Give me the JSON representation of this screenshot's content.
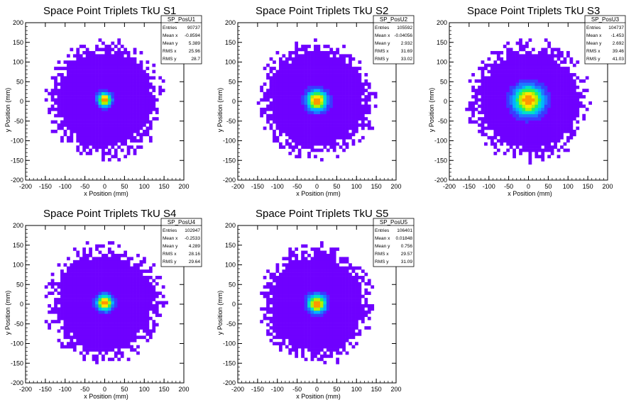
{
  "chart_data": [
    {
      "type": "heatmap",
      "title": "Space Point Triplets TkU S1",
      "xlabel": "x Position (mm)",
      "ylabel": "y Position (mm)",
      "xlim": [
        -200,
        200
      ],
      "ylim": [
        -200,
        200
      ],
      "xticks": [
        "-200",
        "-150",
        "-100",
        "-50",
        "0",
        "50",
        "100",
        "150",
        "200"
      ],
      "yticks": [
        "-200",
        "-150",
        "-100",
        "-50",
        "0",
        "50",
        "100",
        "150",
        "200"
      ],
      "stats": {
        "name": "SP_PosU1",
        "entries": "90737",
        "mean_x": "-0.8594",
        "mean_y": "5.389",
        "rms_x": "25.96",
        "rms_y": "28.7"
      },
      "distribution": {
        "center": [
          0,
          5
        ],
        "core_sigma": 12,
        "extent_radius": 160
      }
    },
    {
      "type": "heatmap",
      "title": "Space Point Triplets TkU S2",
      "xlabel": "x Position (mm)",
      "ylabel": "y Position (mm)",
      "xlim": [
        -200,
        200
      ],
      "ylim": [
        -200,
        200
      ],
      "xticks": [
        "-200",
        "-150",
        "-100",
        "-50",
        "0",
        "50",
        "100",
        "150",
        "200"
      ],
      "yticks": [
        "-200",
        "-150",
        "-100",
        "-50",
        "0",
        "50",
        "100",
        "150",
        "200"
      ],
      "stats": {
        "name": "SP_PosU2",
        "entries": "105592",
        "mean_x": "-0.04056",
        "mean_y": "2.932",
        "rms_x": "31.69",
        "rms_y": "33.02"
      },
      "distribution": {
        "center": [
          0,
          3
        ],
        "core_sigma": 18,
        "extent_radius": 160
      }
    },
    {
      "type": "heatmap",
      "title": "Space Point Triplets TkU S3",
      "xlabel": "x Position (mm)",
      "ylabel": "y Position (mm)",
      "xlim": [
        -200,
        200
      ],
      "ylim": [
        -200,
        200
      ],
      "xticks": [
        "-200",
        "-150",
        "-100",
        "-50",
        "0",
        "50",
        "100",
        "150",
        "200"
      ],
      "yticks": [
        "-200",
        "-150",
        "-100",
        "-50",
        "0",
        "50",
        "100",
        "150",
        "200"
      ],
      "stats": {
        "name": "SP_PosU3",
        "entries": "104737",
        "mean_x": "-1.453",
        "mean_y": "2.692",
        "rms_x": "39.46",
        "rms_y": "41.03"
      },
      "distribution": {
        "center": [
          0,
          3
        ],
        "core_sigma": 26,
        "extent_radius": 165
      }
    },
    {
      "type": "heatmap",
      "title": "Space Point Triplets TkU S4",
      "xlabel": "x Position (mm)",
      "ylabel": "y Position (mm)",
      "xlim": [
        -200,
        200
      ],
      "ylim": [
        -200,
        200
      ],
      "xticks": [
        "-200",
        "-150",
        "-100",
        "-50",
        "0",
        "50",
        "100",
        "150",
        "200"
      ],
      "yticks": [
        "-200",
        "-150",
        "-100",
        "-50",
        "0",
        "50",
        "100",
        "150",
        "200"
      ],
      "stats": {
        "name": "SP_PosU4",
        "entries": "102947",
        "mean_x": "-0.2533",
        "mean_y": "4.289",
        "rms_x": "28.16",
        "rms_y": "29.64"
      },
      "distribution": {
        "center": [
          0,
          4
        ],
        "core_sigma": 14,
        "extent_radius": 160
      }
    },
    {
      "type": "heatmap",
      "title": "Space Point Triplets TkU S5",
      "xlabel": "x Position (mm)",
      "ylabel": "y Position (mm)",
      "xlim": [
        -200,
        200
      ],
      "ylim": [
        -200,
        200
      ],
      "xticks": [
        "-200",
        "-150",
        "-100",
        "-50",
        "0",
        "50",
        "100",
        "150",
        "200"
      ],
      "yticks": [
        "-200",
        "-150",
        "-100",
        "-50",
        "0",
        "50",
        "100",
        "150",
        "200"
      ],
      "stats": {
        "name": "SP_PosU5",
        "entries": "106401",
        "mean_x": "0.01848",
        "mean_y": "0.756",
        "rms_x": "29.57",
        "rms_y": "31.09"
      },
      "distribution": {
        "center": [
          0,
          1
        ],
        "core_sigma": 16,
        "extent_radius": 160
      }
    }
  ],
  "stats_labels": {
    "entries": "Entries",
    "mean_x": "Mean x",
    "mean_y": "Mean y",
    "rms_x": "RMS x",
    "rms_y": "RMS y"
  },
  "colors": {
    "background": "#ffffff",
    "frame": "#000000",
    "palette": [
      "#6f00ff",
      "#3a3aff",
      "#1e78ff",
      "#00b4ff",
      "#00e0c8",
      "#28f05a",
      "#b4f000",
      "#ffe600",
      "#ff9600",
      "#ff2800"
    ]
  }
}
